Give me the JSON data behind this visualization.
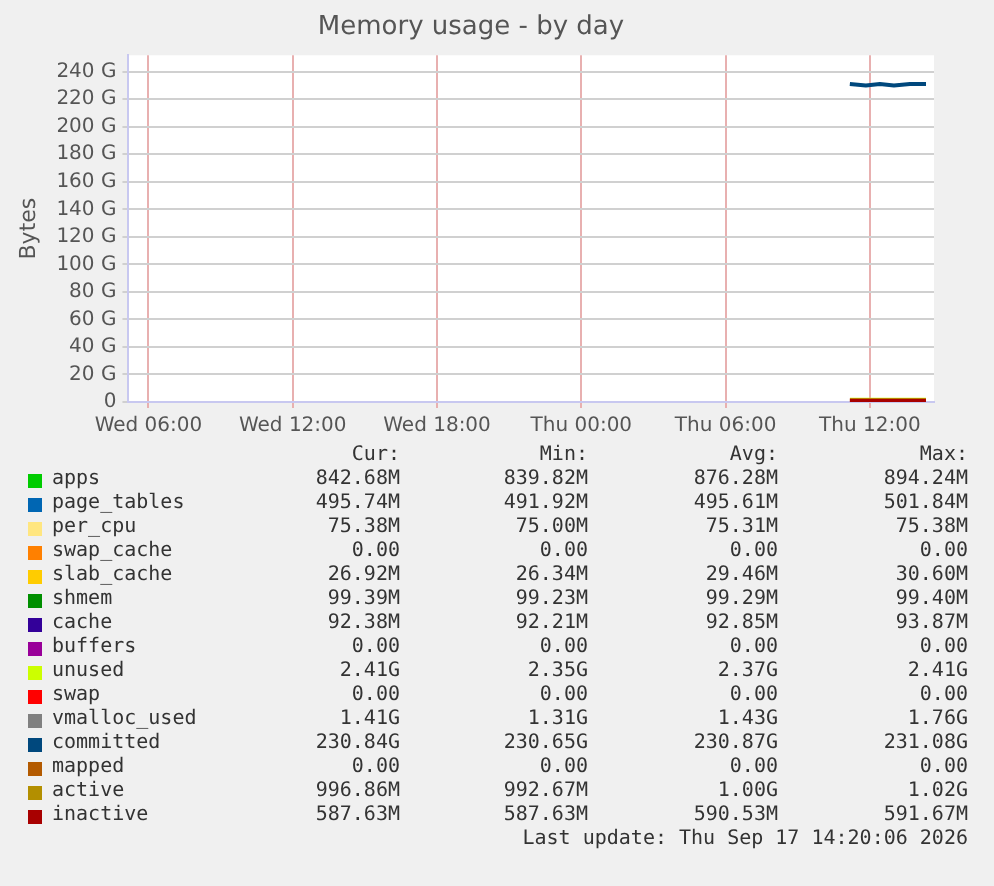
{
  "chart_data": {
    "type": "area",
    "title": "Memory usage - by day",
    "ylabel": "Bytes",
    "grid": true,
    "legend": "bottom",
    "marker": "none",
    "xlim": [
      "2026-09-16T05:10",
      "2026-09-17T14:40"
    ],
    "xticks": [
      {
        "value": "2026-09-16T06:00",
        "label": "Wed 06:00"
      },
      {
        "value": "2026-09-16T12:00",
        "label": "Wed 12:00"
      },
      {
        "value": "2026-09-16T18:00",
        "label": "Wed 18:00"
      },
      {
        "value": "2026-09-17T00:00",
        "label": "Thu 00:00"
      },
      {
        "value": "2026-09-17T06:00",
        "label": "Thu 06:00"
      },
      {
        "value": "2026-09-17T12:00",
        "label": "Thu 12:00"
      }
    ],
    "ylim": [
      0,
      252
    ],
    "yticks": [
      0,
      {
        "value": 20,
        "label": "20 G"
      },
      {
        "value": 40,
        "label": "40 G"
      },
      {
        "value": 60,
        "label": "60 G"
      },
      {
        "value": 80,
        "label": "80 G"
      },
      {
        "value": 100,
        "label": "100 G"
      },
      {
        "value": 120,
        "label": "120 G"
      },
      {
        "value": 140,
        "label": "140 G"
      },
      {
        "value": 160,
        "label": "160 G"
      },
      {
        "value": 180,
        "label": "180 G"
      },
      {
        "value": 200,
        "label": "200 G"
      },
      {
        "value": 220,
        "label": "220 G"
      },
      {
        "value": 240,
        "label": "240 G"
      }
    ],
    "x": [
      "2026-09-17T11:10",
      "2026-09-17T11:50",
      "2026-09-17T12:25",
      "2026-09-17T13:00",
      "2026-09-17T13:40",
      "2026-09-17T14:20"
    ],
    "series": [
      {
        "name": "apps",
        "color": "#00cc00",
        "values": [
          null,
          null,
          null,
          null,
          null,
          null
        ]
      },
      {
        "name": "page_tables",
        "color": "#0066b3",
        "values": [
          null,
          null,
          null,
          null,
          null,
          null
        ]
      },
      {
        "name": "per_cpu",
        "color": "#ffe680",
        "values": [
          null,
          null,
          null,
          null,
          null,
          null
        ]
      },
      {
        "name": "swap_cache",
        "color": "#ff8000",
        "values": [
          null,
          null,
          null,
          null,
          null,
          null
        ]
      },
      {
        "name": "slab_cache",
        "color": "#ffcc00",
        "values": [
          null,
          null,
          null,
          null,
          null,
          null
        ]
      },
      {
        "name": "shmem",
        "color": "#008f00",
        "values": [
          null,
          null,
          null,
          null,
          null,
          null
        ]
      },
      {
        "name": "cache",
        "color": "#330099",
        "values": [
          null,
          null,
          null,
          null,
          null,
          null
        ]
      },
      {
        "name": "buffers",
        "color": "#990099",
        "values": [
          null,
          null,
          null,
          null,
          null,
          null
        ]
      },
      {
        "name": "unused",
        "color": "#ccff00",
        "values": [
          3,
          3,
          3,
          3,
          3,
          3
        ]
      },
      {
        "name": "swap",
        "color": "#ff0000",
        "values": [
          null,
          null,
          null,
          null,
          null,
          null
        ]
      },
      {
        "name": "vmalloc_used",
        "type": "line",
        "color": "#808080",
        "values": [
          null,
          null,
          null,
          null,
          null,
          null
        ]
      },
      {
        "name": "committed",
        "type": "line",
        "color": "#00487d",
        "values": [
          231,
          230,
          231,
          230,
          231,
          231
        ]
      },
      {
        "name": "mapped",
        "type": "line",
        "color": "#b35a00",
        "values": [
          null,
          null,
          null,
          null,
          null,
          null
        ]
      },
      {
        "name": "active",
        "type": "line",
        "color": "#b38f00",
        "values": [
          null,
          null,
          null,
          null,
          null,
          null
        ]
      },
      {
        "name": "inactive",
        "type": "line",
        "color": "#a80000",
        "values": [
          1,
          1,
          1,
          1,
          1,
          1
        ]
      }
    ],
    "annotations": [
      "Cur:",
      "Min:",
      "Avg:",
      "Max:",
      "842.68M",
      "839.82M",
      "876.28M",
      "894.24M",
      "495.74M",
      "491.92M",
      "495.61M",
      "501.84M",
      "75.38M",
      "75.00M",
      "75.31M",
      "75.38M",
      "0.00",
      "0.00",
      "0.00",
      "0.00",
      "26.92M",
      "26.34M",
      "29.46M",
      "30.60M",
      "99.39M",
      "99.23M",
      "99.29M",
      "99.40M",
      "92.38M",
      "92.21M",
      "92.85M",
      "93.87M",
      "0.00",
      "0.00",
      "0.00",
      "0.00",
      "2.41G",
      "2.35G",
      "2.37G",
      "2.41G",
      "0.00",
      "0.00",
      "0.00",
      "0.00",
      "1.41G",
      "1.31G",
      "1.43G",
      "1.76G",
      "230.84G",
      "230.65G",
      "230.87G",
      "231.08G",
      "0.00",
      "0.00",
      "0.00",
      "0.00",
      "996.86M",
      "992.67M",
      "1.00G",
      "1.02G",
      "587.63M",
      "587.63M",
      "590.53M",
      "591.67M",
      "Last update: Thu Sep 17 14:20:06 2026"
    ]
  }
}
